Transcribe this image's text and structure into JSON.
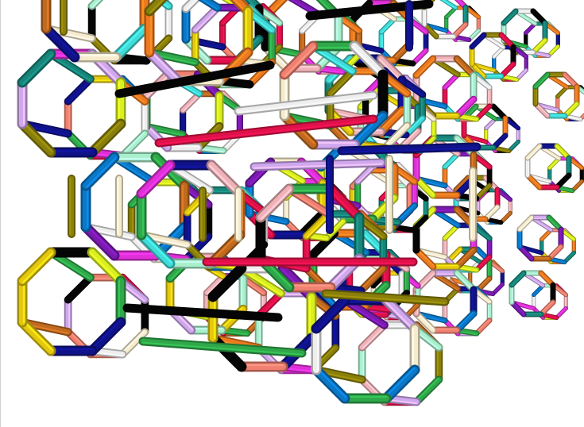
{
  "image": {
    "subject": "",
    "palette": {
      "red": "#e0114a",
      "black": "#050505",
      "navy": "#10128a",
      "olive": "#8a7f0a",
      "lime": "#d8f020",
      "lavender": "#d0a8ee",
      "pink": "#f0b2b8",
      "magenta": "#e030d8",
      "orange": "#ee7a20",
      "teal": "#17857a",
      "cyan": "#40dcd8",
      "mint": "#a8f0cc",
      "cream": "#f6eccc",
      "white": "#eeeeee",
      "blue": "#0a78c8",
      "green": "#2fa84a",
      "gold": "#e4c810",
      "purple": "#7a1ab0",
      "brown": "#c06a20",
      "salmon": "#f08070"
    }
  }
}
